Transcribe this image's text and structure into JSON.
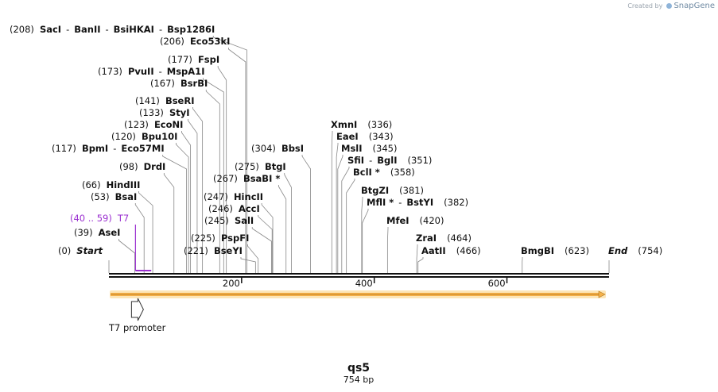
{
  "credit": {
    "prefix": "Created by",
    "brand": "SnapGene"
  },
  "map": {
    "name": "qs5",
    "length_label": "754 bp",
    "length": 754,
    "ticks": [
      {
        "value": 200,
        "label": "200"
      },
      {
        "value": 400,
        "label": "400"
      },
      {
        "value": 600,
        "label": "600"
      }
    ]
  },
  "features": [
    {
      "name": "T7 promoter",
      "type": "promoter",
      "start": 40,
      "end": 59,
      "color": "#ffffff"
    },
    {
      "name": "",
      "type": "orf",
      "start": 1,
      "end": 754,
      "color": "#f5b14a"
    }
  ],
  "primers": [
    {
      "name": "T7",
      "range": "(40 .. 59)",
      "start": 40,
      "end": 59,
      "color": "#9b30d0"
    }
  ],
  "sites": [
    {
      "pos": "(0)",
      "parts": [
        {
          "n": "Start",
          "style": "italic"
        }
      ],
      "site": 0
    },
    {
      "pos": "(39)",
      "parts": [
        {
          "n": "AseI"
        }
      ],
      "site": 39
    },
    {
      "pos": "(53)",
      "parts": [
        {
          "n": "BsaI"
        }
      ],
      "site": 53
    },
    {
      "pos": "(66)",
      "parts": [
        {
          "n": "HindIII"
        }
      ],
      "site": 66
    },
    {
      "pos": "(98)",
      "parts": [
        {
          "n": "DrdI"
        }
      ],
      "site": 98
    },
    {
      "pos": "(117)",
      "parts": [
        {
          "n": "BpmI"
        },
        {
          "n": "Eco57MI"
        }
      ],
      "site": 117
    },
    {
      "pos": "(120)",
      "parts": [
        {
          "n": "Bpu10I"
        }
      ],
      "site": 120
    },
    {
      "pos": "(123)",
      "parts": [
        {
          "n": "EcoNI"
        }
      ],
      "site": 123
    },
    {
      "pos": "(133)",
      "parts": [
        {
          "n": "StyI"
        }
      ],
      "site": 133
    },
    {
      "pos": "(141)",
      "parts": [
        {
          "n": "BseRI"
        }
      ],
      "site": 141
    },
    {
      "pos": "(167)",
      "parts": [
        {
          "n": "BsrBI"
        }
      ],
      "site": 167
    },
    {
      "pos": "(173)",
      "parts": [
        {
          "n": "PvuII"
        },
        {
          "n": "MspA1I"
        }
      ],
      "site": 173
    },
    {
      "pos": "(177)",
      "parts": [
        {
          "n": "FspI"
        }
      ],
      "site": 177
    },
    {
      "pos": "(206)",
      "parts": [
        {
          "n": "Eco53kI"
        }
      ],
      "site": 206
    },
    {
      "pos": "(208)",
      "parts": [
        {
          "n": "SacI"
        },
        {
          "n": "BanII"
        },
        {
          "n": "BsiHKAI"
        },
        {
          "n": "Bsp1286I"
        }
      ],
      "site": 208
    },
    {
      "pos": "(221)",
      "parts": [
        {
          "n": "BseYI"
        }
      ],
      "site": 221
    },
    {
      "pos": "(225)",
      "parts": [
        {
          "n": "PspFI"
        }
      ],
      "site": 225
    },
    {
      "pos": "(245)",
      "parts": [
        {
          "n": "SalI"
        }
      ],
      "site": 245
    },
    {
      "pos": "(246)",
      "parts": [
        {
          "n": "AccI"
        }
      ],
      "site": 246
    },
    {
      "pos": "(247)",
      "parts": [
        {
          "n": "HincII"
        }
      ],
      "site": 247
    },
    {
      "pos": "(267)",
      "parts": [
        {
          "n": "BsaBI *"
        }
      ],
      "site": 267
    },
    {
      "pos": "(275)",
      "parts": [
        {
          "n": "BtgI"
        }
      ],
      "site": 275
    },
    {
      "pos": "(304)",
      "parts": [
        {
          "n": "BbsI"
        }
      ],
      "site": 304
    },
    {
      "pos": "(336)",
      "parts": [
        {
          "n": "XmnI"
        }
      ],
      "site": 336
    },
    {
      "pos": "(343)",
      "parts": [
        {
          "n": "EaeI"
        }
      ],
      "site": 343
    },
    {
      "pos": "(345)",
      "parts": [
        {
          "n": "MslI"
        }
      ],
      "site": 345
    },
    {
      "pos": "(351)",
      "parts": [
        {
          "n": "SfiI"
        },
        {
          "n": "BglI"
        }
      ],
      "site": 351
    },
    {
      "pos": "(358)",
      "parts": [
        {
          "n": "BclI *"
        }
      ],
      "site": 358
    },
    {
      "pos": "(381)",
      "parts": [
        {
          "n": "BtgZI"
        }
      ],
      "site": 381
    },
    {
      "pos": "(382)",
      "parts": [
        {
          "n": "MflI *"
        },
        {
          "n": "BstYI"
        }
      ],
      "site": 382
    },
    {
      "pos": "(420)",
      "parts": [
        {
          "n": "MfeI"
        }
      ],
      "site": 420
    },
    {
      "pos": "(464)",
      "parts": [
        {
          "n": "ZraI"
        }
      ],
      "site": 464
    },
    {
      "pos": "(466)",
      "parts": [
        {
          "n": "AatII"
        }
      ],
      "site": 466
    },
    {
      "pos": "(623)",
      "parts": [
        {
          "n": "BmgBI"
        }
      ],
      "site": 623
    },
    {
      "pos": "(754)",
      "parts": [
        {
          "n": "End",
          "style": "italic"
        }
      ],
      "site": 754
    }
  ]
}
